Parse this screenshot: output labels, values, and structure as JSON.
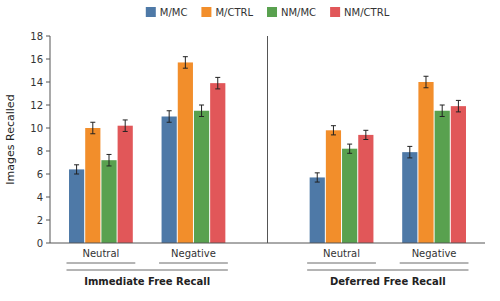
{
  "chart_data": {
    "type": "bar",
    "categories": [
      "Neutral",
      "Negative",
      "Neutral",
      "Negative"
    ],
    "annotations": [
      "Immediate Free Recall",
      "Deferred Free Recall"
    ],
    "series": [
      {
        "name": "M/MC",
        "values": [
          6.4,
          11.0,
          5.7,
          7.9
        ],
        "errors": [
          0.4,
          0.5,
          0.4,
          0.5
        ]
      },
      {
        "name": "M/CTRL",
        "values": [
          10.0,
          15.7,
          9.8,
          14.0
        ],
        "errors": [
          0.5,
          0.5,
          0.4,
          0.5
        ]
      },
      {
        "name": "NM/MC",
        "values": [
          7.2,
          11.5,
          8.2,
          11.5
        ],
        "errors": [
          0.5,
          0.5,
          0.4,
          0.5
        ]
      },
      {
        "name": "NM/CTRL",
        "values": [
          10.2,
          13.9,
          9.4,
          11.9
        ],
        "errors": [
          0.5,
          0.5,
          0.4,
          0.5
        ]
      }
    ],
    "ylabel": "Images Recalled",
    "ylim": [
      0,
      18
    ],
    "yticks": [
      0,
      2,
      4,
      6,
      8,
      10,
      12,
      14,
      16,
      18
    ],
    "grid": false,
    "legend": "top"
  }
}
